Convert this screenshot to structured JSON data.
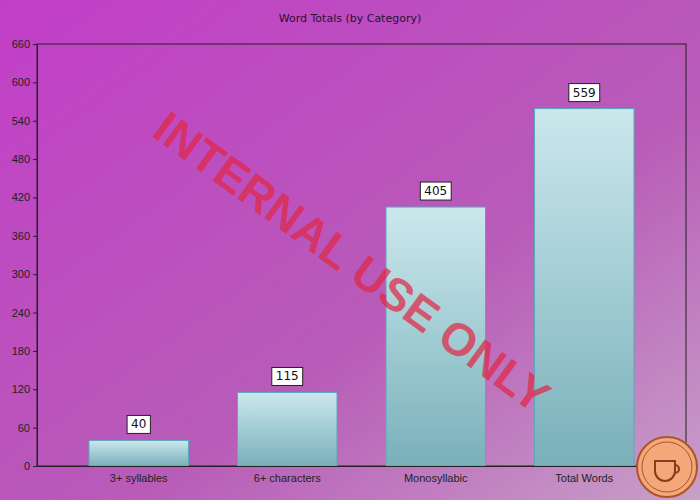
{
  "chart_data": {
    "type": "bar",
    "title": "Word Totals (by Category)",
    "categories": [
      "3+ syllables",
      "6+ characters",
      "Monosyllabic",
      "Total Words"
    ],
    "values": [
      40,
      115,
      405,
      559
    ],
    "color": "#8ccbd6",
    "ylim": [
      0,
      660
    ],
    "yticks": [
      0,
      60,
      120,
      180,
      240,
      300,
      360,
      420,
      480,
      540,
      600,
      660
    ],
    "grid": false,
    "data_labels": true,
    "annotations": [
      "INTERNAL USE ONLY"
    ]
  }
}
